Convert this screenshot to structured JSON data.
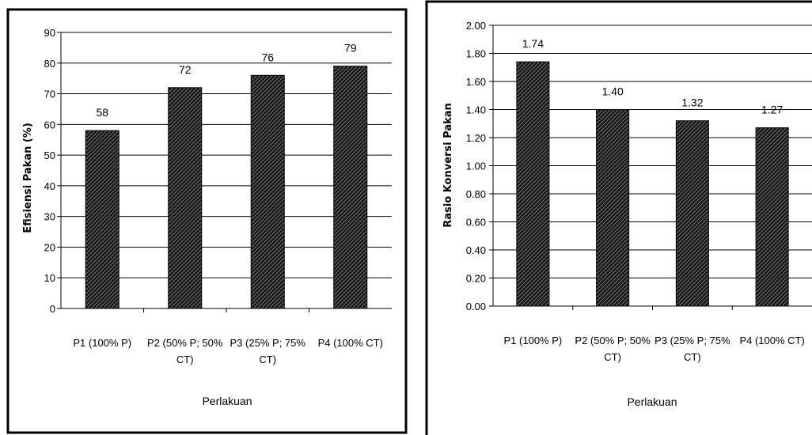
{
  "chart_data": [
    {
      "type": "bar",
      "categories": [
        "P1 (100% P)",
        "P2 (50% P; 50% CT)",
        "P3 (25% P; 75% CT)",
        "P4 (100% CT)"
      ],
      "category_lines": [
        [
          "P1 (100% P)"
        ],
        [
          "P2 (50% P; 50%",
          "CT)"
        ],
        [
          "P3 (25% P; 75%",
          "CT)"
        ],
        [
          "P4 (100% CT)"
        ]
      ],
      "values": [
        58,
        72,
        76,
        79
      ],
      "data_labels": [
        "58",
        "72",
        "76",
        "79"
      ],
      "title": "",
      "xlabel": "Perlakuan",
      "ylabel": "Efisiensi Pakan (%)",
      "ylim": [
        0,
        90
      ],
      "yticks": [
        "0",
        "10",
        "20",
        "30",
        "40",
        "50",
        "60",
        "70",
        "80",
        "90"
      ],
      "grid": true,
      "bar_pattern": "crosshatch",
      "bar_color": "#1a1a1a"
    },
    {
      "type": "bar",
      "categories": [
        "P1 (100% P)",
        "P2 (50% P; 50% CT)",
        "P3 (25% P; 75% CT)",
        "P4 (100% CT)"
      ],
      "category_lines": [
        [
          "P1 (100% P)"
        ],
        [
          "P2 (50% P; 50%",
          "CT)"
        ],
        [
          "P3 (25% P; 75%",
          "CT)"
        ],
        [
          "P4 (100% CT)"
        ]
      ],
      "values": [
        1.74,
        1.4,
        1.32,
        1.27
      ],
      "data_labels": [
        "1.74",
        "1.40",
        "1.32",
        "1.27"
      ],
      "title": "",
      "xlabel": "Perlakuan",
      "ylabel": "Rasio Konversi Pakan",
      "ylim": [
        0,
        2
      ],
      "yticks": [
        "0.00",
        "0.20",
        "0.40",
        "0.60",
        "0.80",
        "1.00",
        "1.20",
        "1.40",
        "1.60",
        "1.80",
        "2.00"
      ],
      "grid": true,
      "bar_pattern": "crosshatch",
      "bar_color": "#1a1a1a"
    }
  ]
}
